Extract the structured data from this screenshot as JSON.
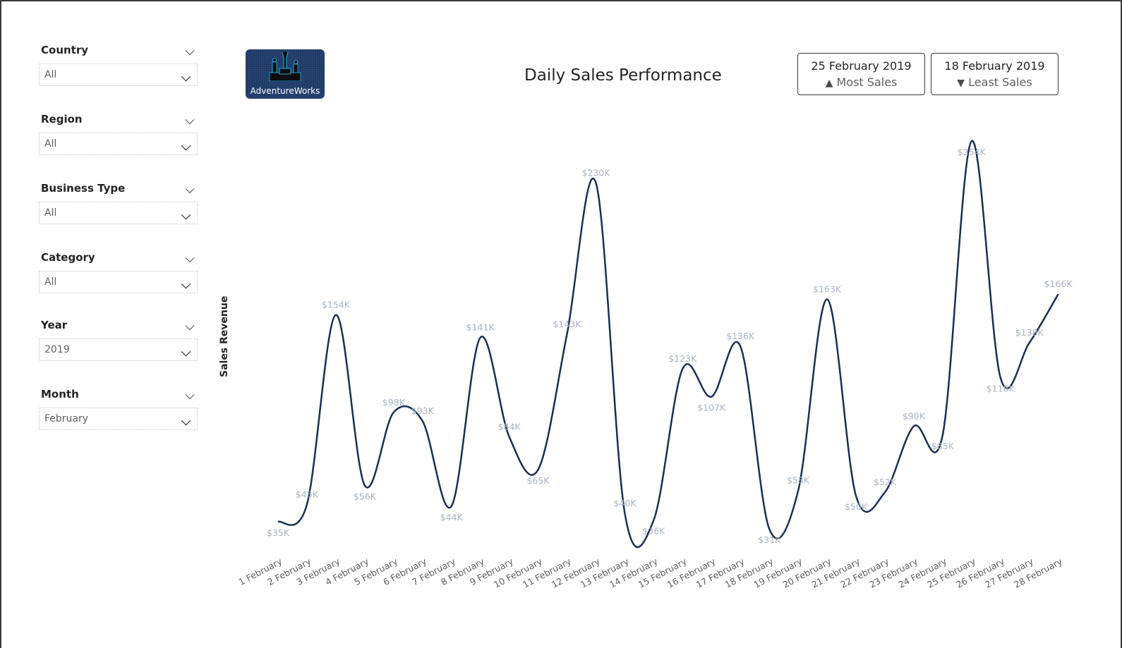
{
  "slicers": [
    {
      "title": "Country",
      "value": "All"
    },
    {
      "title": "Region",
      "value": "All"
    },
    {
      "title": "Business Type",
      "value": "All"
    },
    {
      "title": "Category",
      "value": "All"
    },
    {
      "title": "Year",
      "value": "2019"
    },
    {
      "title": "Month",
      "value": "February"
    }
  ],
  "logo": {
    "text": "AdventureWorks",
    "icon": "podium-icon"
  },
  "header": {
    "title": "Daily Sales Performance"
  },
  "cards": {
    "most": {
      "date": "25 February 2019",
      "label": "Most Sales",
      "icon": "triangle-up-icon",
      "glyph": "▲"
    },
    "least": {
      "date": "18 February 2019",
      "label": "Least Sales",
      "icon": "triangle-down-icon",
      "glyph": "▼"
    }
  },
  "colors": {
    "line": "#1b2f50",
    "data_label": "#a7b4c4",
    "max_label": "#2ecc71",
    "min_label": "#e8353a",
    "logo_bg": "#1f3864"
  },
  "chart_data": {
    "type": "line",
    "title": "Daily Sales Performance",
    "xlabel": "",
    "ylabel": "Sales Revenue",
    "categories": [
      "1 February",
      "2 February",
      "3 February",
      "4 February",
      "5 February",
      "6 February",
      "7 February",
      "8 February",
      "9 February",
      "10 February",
      "11 February",
      "12 February",
      "13 February",
      "14 February",
      "15 February",
      "16 February",
      "17 February",
      "18 February",
      "19 February",
      "20 February",
      "21 February",
      "22 February",
      "23 February",
      "24 February",
      "25 February",
      "26 February",
      "27 February",
      "28 February"
    ],
    "values": [
      35,
      45,
      154,
      56,
      98,
      93,
      44,
      141,
      84,
      65,
      143,
      230,
      40,
      36,
      123,
      107,
      136,
      31,
      53,
      163,
      50,
      52,
      90,
      85,
      254,
      118,
      138,
      166
    ],
    "labels": [
      "$35K",
      "$45K",
      "$154K",
      "$56K",
      "$98K",
      "$93K",
      "$44K",
      "$141K",
      "$84K",
      "$65K",
      "$143K",
      "$230K",
      "$40K",
      "$36K",
      "$123K",
      "$107K",
      "$136K",
      "$31K",
      "$53K",
      "$163K",
      "$50K",
      "$52K",
      "$90K",
      "$85K",
      "$254K",
      "$118K",
      "$138K",
      "$166K"
    ],
    "units": "thousands USD",
    "max": {
      "category": "25 February",
      "value": 254,
      "label": "$254K"
    },
    "min": {
      "category": "18 February",
      "value": 31,
      "label": "$31K"
    },
    "grid": false,
    "legend": "none",
    "smooth": true
  }
}
